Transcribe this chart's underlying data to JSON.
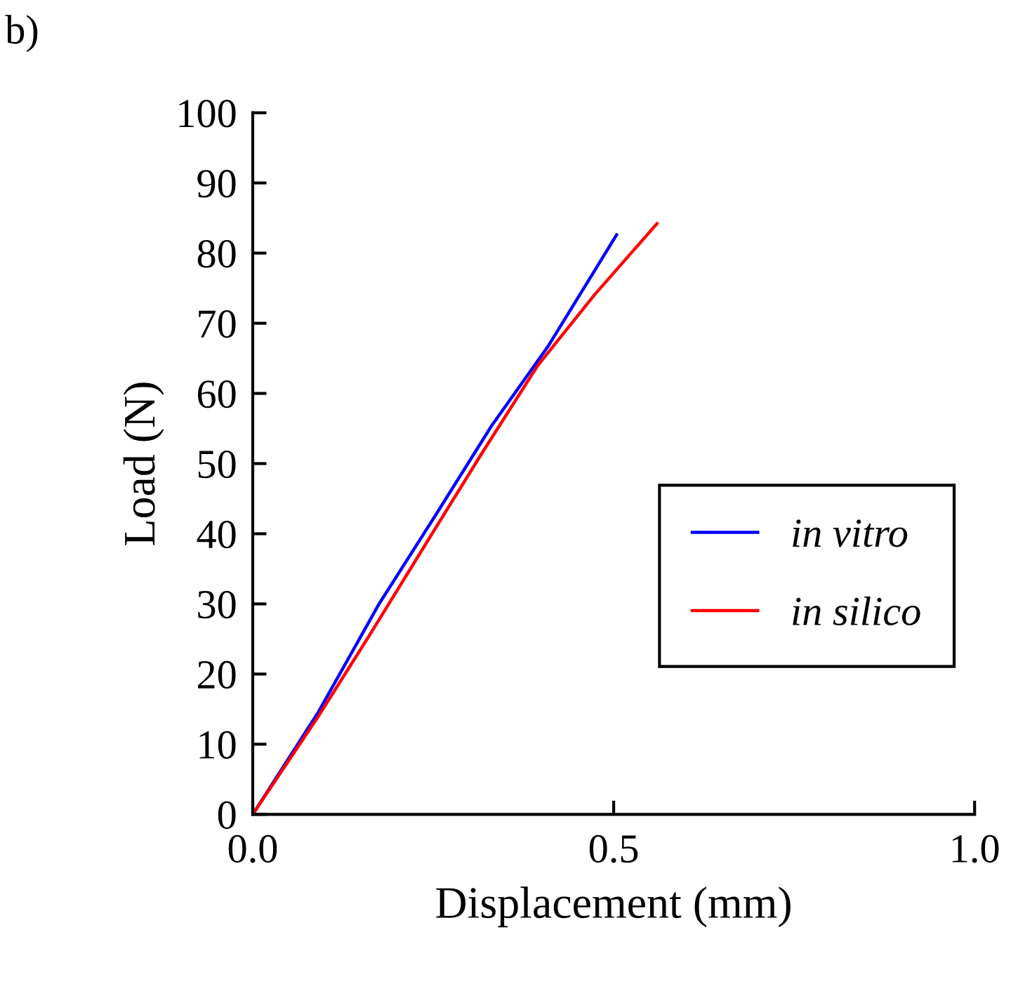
{
  "chart_data": {
    "type": "line",
    "annotations": [
      "b)"
    ],
    "xlabel": "Displacement (mm)",
    "ylabel": "Load (N)",
    "xlim": [
      0,
      1
    ],
    "xticks": [
      {
        "value": 0,
        "label": "0.0"
      },
      {
        "value": 0.5,
        "label": "0.5"
      },
      {
        "value": 1,
        "label": "1.0"
      }
    ],
    "ylim": [
      0,
      100
    ],
    "yticks": [
      0,
      10,
      20,
      30,
      40,
      50,
      60,
      70,
      80,
      90,
      100
    ],
    "grid": false,
    "legend": "right",
    "marker": "none",
    "line_style": "solid",
    "series": [
      {
        "name": "in vitro",
        "color": "#0000ff",
        "x": [
          0,
          0.091,
          0.175,
          0.253,
          0.331,
          0.409,
          0.473,
          0.504
        ],
        "values": [
          0,
          14.6,
          30,
          42.6,
          55.4,
          66.7,
          77.4,
          82.6
        ]
      },
      {
        "name": "in silico",
        "color": "#ff0000",
        "x": [
          0,
          0.091,
          0.161,
          0.24,
          0.317,
          0.395,
          0.473,
          0.519,
          0.56
        ],
        "values": [
          0,
          14,
          25.4,
          38.6,
          51.4,
          64,
          74,
          79.4,
          84.2
        ]
      }
    ]
  }
}
